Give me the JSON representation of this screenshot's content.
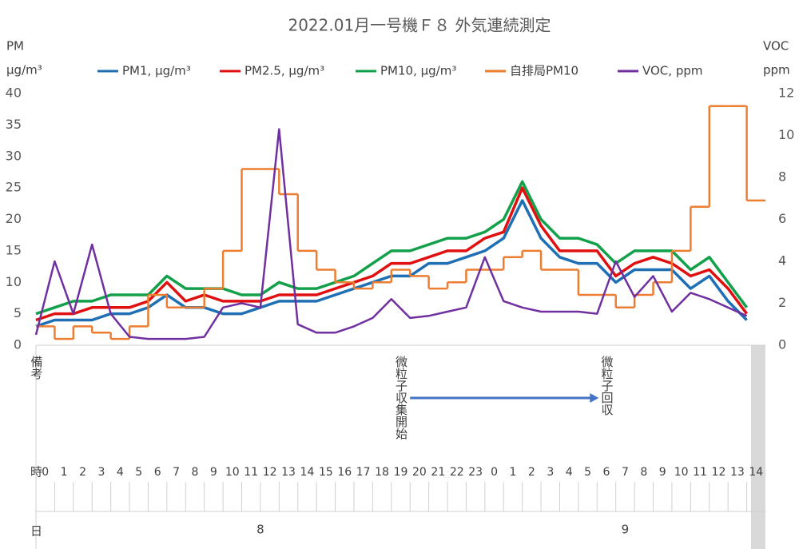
{
  "chart_data": {
    "type": "line",
    "title": "2022.01月一号機Ｆ８ 外気連続測定",
    "y_axis_label": [
      "PM",
      "μg/m³"
    ],
    "y2_axis_label": [
      "VOC",
      "ppm"
    ],
    "x": [
      0,
      1,
      2,
      3,
      4,
      5,
      6,
      7,
      8,
      9,
      10,
      11,
      12,
      13,
      14,
      15,
      16,
      17,
      18,
      19,
      20,
      21,
      22,
      23,
      24,
      25,
      26,
      27,
      28,
      29,
      30,
      31,
      32,
      33,
      34,
      35,
      36,
      37,
      38
    ],
    "xlim": [
      0,
      39
    ],
    "ylim": [
      0,
      40
    ],
    "yticks": [
      0,
      5,
      10,
      15,
      20,
      25,
      30,
      35,
      40
    ],
    "y2lim": [
      0,
      12
    ],
    "y2ticks": [
      0,
      2,
      4,
      6,
      8,
      10,
      12
    ],
    "grid": false,
    "series": [
      {
        "name": "PM1, μg/m³",
        "color": "#1f6fb5",
        "values": [
          3,
          4,
          4,
          4,
          5,
          5,
          6,
          8,
          6,
          6,
          5,
          5,
          6,
          7,
          7,
          7,
          8,
          9,
          10,
          11,
          11,
          13,
          13,
          14,
          15,
          17,
          23,
          17,
          14,
          13,
          13,
          10,
          12,
          12,
          12,
          9,
          11,
          7,
          4
        ]
      },
      {
        "name": "PM2.5, μg/m³",
        "color": "#e01010",
        "values": [
          4,
          5,
          5,
          6,
          6,
          6,
          7,
          10,
          7,
          8,
          7,
          7,
          7,
          8,
          8,
          8,
          9,
          10,
          11,
          13,
          13,
          14,
          15,
          15,
          17,
          18,
          25,
          19,
          15,
          15,
          15,
          11,
          13,
          14,
          13,
          11,
          12,
          9,
          5
        ]
      },
      {
        "name": "PM10, μg/m³",
        "color": "#12a04a",
        "values": [
          5,
          6,
          7,
          7,
          8,
          8,
          8,
          11,
          9,
          9,
          9,
          8,
          8,
          10,
          9,
          9,
          10,
          11,
          13,
          15,
          15,
          16,
          17,
          17,
          18,
          20,
          26,
          20,
          17,
          17,
          16,
          13,
          15,
          15,
          15,
          12,
          14,
          10,
          6
        ]
      },
      {
        "name": "自排局PM10",
        "color": "#ed7d31",
        "step": "post",
        "values": [
          3,
          1,
          3,
          2,
          1,
          3,
          8,
          6,
          6,
          9,
          15,
          28,
          28,
          24,
          15,
          12,
          10,
          9,
          10,
          12,
          11,
          9,
          10,
          12,
          12,
          14,
          15,
          12,
          12,
          8,
          8,
          6,
          8,
          10,
          15,
          22,
          38,
          38,
          23
        ]
      },
      {
        "name": "VOC, ppm",
        "color": "#7030a0",
        "axis": "y2",
        "values": [
          0.5,
          4,
          1.5,
          4.8,
          1.5,
          0.4,
          0.3,
          0.3,
          0.3,
          0.4,
          1.8,
          2,
          1.8,
          10.3,
          1,
          0.6,
          0.6,
          0.9,
          1.3,
          2.2,
          1.3,
          1.4,
          1.6,
          1.8,
          4.2,
          2.1,
          1.8,
          1.6,
          1.6,
          1.6,
          1.5,
          4,
          2.3,
          3.3,
          1.6,
          2.5,
          2.2,
          1.8,
          1.4
        ]
      }
    ],
    "table": {
      "notes_header": "備考",
      "hours_header": "時",
      "days_header": "日",
      "hours": [
        "0",
        "1",
        "2",
        "3",
        "4",
        "5",
        "6",
        "7",
        "8",
        "9",
        "10",
        "11",
        "12",
        "13",
        "14",
        "15",
        "16",
        "17",
        "18",
        "19",
        "20",
        "21",
        "22",
        "23",
        "0",
        "1",
        "2",
        "3",
        "4",
        "5",
        "6",
        "7",
        "8",
        "9",
        "10",
        "11",
        "12",
        "13",
        "14"
      ],
      "notes": [
        null,
        null,
        null,
        null,
        null,
        null,
        null,
        null,
        null,
        null,
        null,
        null,
        null,
        null,
        null,
        null,
        null,
        null,
        null,
        "微粒子収集開始",
        null,
        null,
        null,
        null,
        null,
        null,
        null,
        null,
        null,
        null,
        "微粒子回収",
        null,
        null,
        null,
        null,
        null,
        null,
        null,
        null
      ],
      "days": [
        "8",
        "9"
      ]
    }
  }
}
